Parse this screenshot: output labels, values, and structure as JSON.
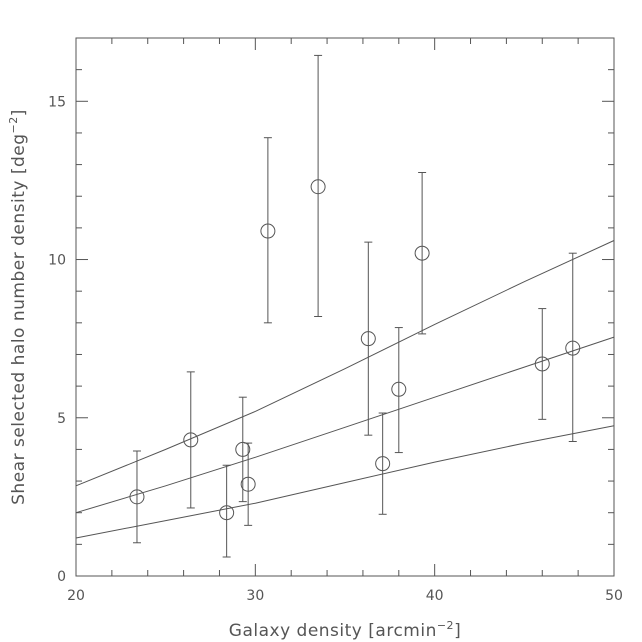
{
  "chart_data": {
    "type": "scatter",
    "xlabel_main": "Galaxy density [arcmin",
    "xlabel_sup": "−2",
    "xlabel_end": "]",
    "ylabel_main": "Shear selected halo number density [deg",
    "ylabel_sup": "−2",
    "ylabel_end": "]",
    "xlim": [
      20,
      50
    ],
    "ylim": [
      0,
      17
    ],
    "x_major_ticks": [
      20,
      30,
      40,
      50
    ],
    "x_minor_step": 2,
    "y_major_ticks": [
      0,
      5,
      10,
      15
    ],
    "y_minor_step": 1,
    "x_tick_labels": [
      "20",
      "30",
      "40",
      "50"
    ],
    "y_tick_labels": [
      "0",
      "5",
      "10",
      "15"
    ],
    "grid": false,
    "points": [
      {
        "x": 23.4,
        "y": 2.5,
        "err_low": 1.05,
        "err_high": 3.95
      },
      {
        "x": 26.4,
        "y": 4.3,
        "err_low": 2.15,
        "err_high": 6.45
      },
      {
        "x": 28.4,
        "y": 2.0,
        "err_low": 0.6,
        "err_high": 3.5
      },
      {
        "x": 29.3,
        "y": 4.0,
        "err_low": 2.35,
        "err_high": 5.65
      },
      {
        "x": 29.6,
        "y": 2.9,
        "err_low": 1.6,
        "err_high": 4.2
      },
      {
        "x": 30.7,
        "y": 10.9,
        "err_low": 8.0,
        "err_high": 13.85
      },
      {
        "x": 33.5,
        "y": 12.3,
        "err_low": 8.2,
        "err_high": 16.45
      },
      {
        "x": 36.3,
        "y": 7.5,
        "err_low": 4.45,
        "err_high": 10.55
      },
      {
        "x": 37.1,
        "y": 3.55,
        "err_low": 1.95,
        "err_high": 5.15
      },
      {
        "x": 38.0,
        "y": 5.9,
        "err_low": 3.9,
        "err_high": 7.85
      },
      {
        "x": 39.3,
        "y": 10.2,
        "err_low": 7.65,
        "err_high": 12.75
      },
      {
        "x": 46.0,
        "y": 6.7,
        "err_low": 4.95,
        "err_high": 8.45
      },
      {
        "x": 47.7,
        "y": 7.2,
        "err_low": 4.25,
        "err_high": 10.2
      }
    ],
    "model_lines": [
      {
        "values": [
          [
            20,
            2.85
          ],
          [
            25,
            4.0
          ],
          [
            30,
            5.2
          ],
          [
            35,
            6.55
          ],
          [
            40,
            7.95
          ],
          [
            45,
            9.3
          ],
          [
            50,
            10.6
          ]
        ]
      },
      {
        "values": [
          [
            20,
            2.0
          ],
          [
            25,
            2.85
          ],
          [
            30,
            3.75
          ],
          [
            35,
            4.7
          ],
          [
            40,
            5.65
          ],
          [
            45,
            6.6
          ],
          [
            50,
            7.55
          ]
        ]
      },
      {
        "values": [
          [
            20,
            1.2
          ],
          [
            25,
            1.75
          ],
          [
            30,
            2.3
          ],
          [
            35,
            2.95
          ],
          [
            40,
            3.6
          ],
          [
            45,
            4.2
          ],
          [
            50,
            4.75
          ]
        ]
      }
    ]
  }
}
